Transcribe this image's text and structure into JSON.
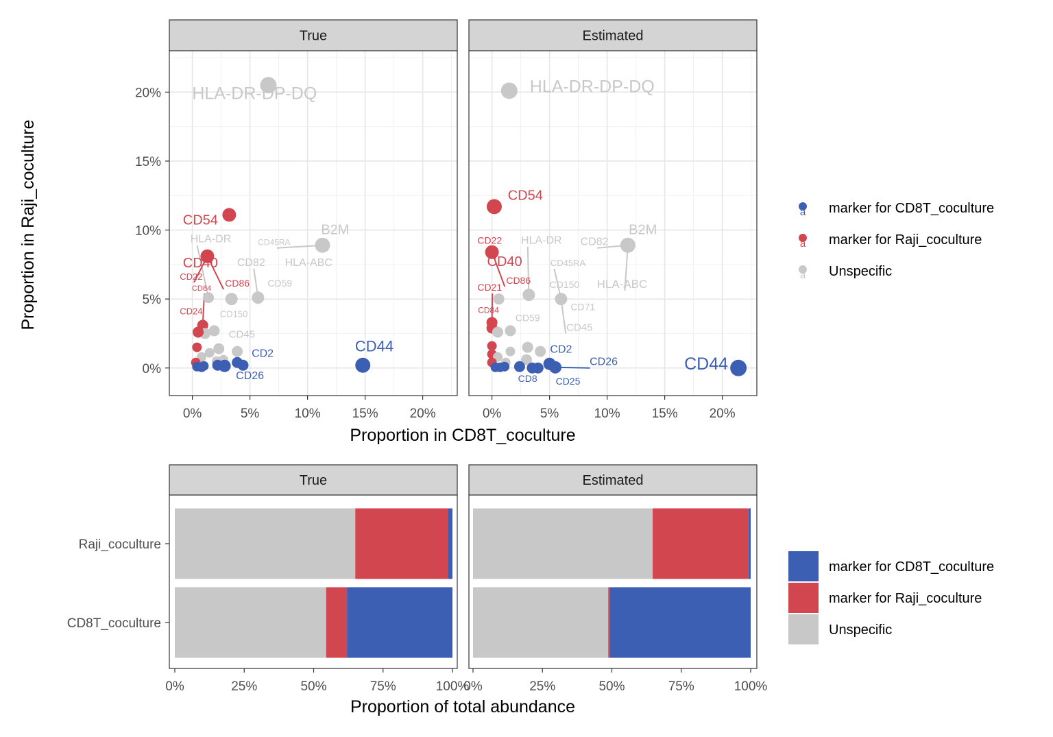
{
  "colors": {
    "cd8t_marker": "#3c5fb4",
    "raji_marker": "#d24650",
    "unspecific": "#c8c8c8"
  },
  "legend": [
    {
      "key": "cd8t_marker",
      "label": "marker for CD8T_coculture"
    },
    {
      "key": "raji_marker",
      "label": "marker for Raji_coculture"
    },
    {
      "key": "unspecific",
      "label": "Unspecific"
    }
  ],
  "chart_data": [
    {
      "type": "scatter",
      "facets": [
        "True",
        "Estimated"
      ],
      "xlabel": "Proportion in CD8T_coculture",
      "ylabel": "Proportion in Raji_coculture",
      "xlim": [
        -2,
        23
      ],
      "ylim": [
        -2,
        23
      ],
      "xticks": [
        0,
        5,
        10,
        15,
        20
      ],
      "yticks": [
        0,
        5,
        10,
        15,
        20
      ],
      "xtick_labels": [
        "0%",
        "5%",
        "10%",
        "15%",
        "20%"
      ],
      "ytick_labels": [
        "0%",
        "5%",
        "10%",
        "15%",
        "20%"
      ],
      "panels": [
        {
          "facet": "True",
          "points": [
            {
              "x": 6.6,
              "y": 20.5,
              "cat": "unspecific",
              "r": 12
            },
            {
              "x": 3.2,
              "y": 11.1,
              "cat": "raji_marker",
              "r": 10
            },
            {
              "x": 11.3,
              "y": 8.9,
              "cat": "unspecific",
              "r": 11
            },
            {
              "x": 1.3,
              "y": 8.1,
              "cat": "raji_marker",
              "r": 10
            },
            {
              "x": 5.7,
              "y": 5.1,
              "cat": "unspecific",
              "r": 9
            },
            {
              "x": 3.4,
              "y": 5.0,
              "cat": "unspecific",
              "r": 9
            },
            {
              "x": 1.4,
              "y": 5.1,
              "cat": "unspecific",
              "r": 8
            },
            {
              "x": 0.9,
              "y": 3.1,
              "cat": "raji_marker",
              "r": 8
            },
            {
              "x": 1.1,
              "y": 2.5,
              "cat": "unspecific",
              "r": 8
            },
            {
              "x": 1.9,
              "y": 2.7,
              "cat": "unspecific",
              "r": 8
            },
            {
              "x": 0.5,
              "y": 2.6,
              "cat": "raji_marker",
              "r": 8
            },
            {
              "x": 0.4,
              "y": 1.5,
              "cat": "raji_marker",
              "r": 7
            },
            {
              "x": 2.3,
              "y": 1.4,
              "cat": "unspecific",
              "r": 8
            },
            {
              "x": 3.9,
              "y": 1.2,
              "cat": "unspecific",
              "r": 8
            },
            {
              "x": 1.5,
              "y": 1.1,
              "cat": "unspecific",
              "r": 7
            },
            {
              "x": 0.8,
              "y": 0.8,
              "cat": "unspecific",
              "r": 7
            },
            {
              "x": 2.7,
              "y": 0.6,
              "cat": "unspecific",
              "r": 7
            },
            {
              "x": 2.1,
              "y": 0.5,
              "cat": "unspecific",
              "r": 7
            },
            {
              "x": 0.3,
              "y": 0.4,
              "cat": "raji_marker",
              "r": 7
            },
            {
              "x": 0.4,
              "y": 0.1,
              "cat": "cd8t_marker",
              "r": 7
            },
            {
              "x": 0.8,
              "y": 0.05,
              "cat": "cd8t_marker",
              "r": 7
            },
            {
              "x": 1.0,
              "y": 0.15,
              "cat": "cd8t_marker",
              "r": 7
            },
            {
              "x": 2.2,
              "y": 0.2,
              "cat": "cd8t_marker",
              "r": 8
            },
            {
              "x": 2.8,
              "y": 0.15,
              "cat": "cd8t_marker",
              "r": 9
            },
            {
              "x": 3.9,
              "y": 0.4,
              "cat": "cd8t_marker",
              "r": 8
            },
            {
              "x": 4.4,
              "y": 0.2,
              "cat": "cd8t_marker",
              "r": 8
            },
            {
              "x": 14.8,
              "y": 0.2,
              "cat": "cd8t_marker",
              "r": 11
            }
          ],
          "labels": [
            {
              "text": "HLA-DR-DP-DQ",
              "x": 5.4,
              "y": 19.5,
              "cat": "unspecific",
              "size": 25
            },
            {
              "text": "CD54",
              "x": 0.7,
              "y": 10.4,
              "cat": "raji_marker",
              "size": 20
            },
            {
              "text": "B2M",
              "x": 12.4,
              "y": 9.7,
              "cat": "unspecific",
              "size": 20
            },
            {
              "text": "HLA-DR",
              "x": 1.6,
              "y": 9.1,
              "cat": "unspecific",
              "size": 16
            },
            {
              "text": "CD45RA",
              "x": 7.1,
              "y": 8.9,
              "cat": "unspecific",
              "size": 12
            },
            {
              "text": "CD40",
              "x": 0.7,
              "y": 7.3,
              "cat": "raji_marker",
              "size": 20
            },
            {
              "text": "CD82",
              "x": 5.1,
              "y": 7.4,
              "cat": "unspecific",
              "size": 16
            },
            {
              "text": "HLA-ABC",
              "x": 10.1,
              "y": 7.4,
              "cat": "unspecific",
              "size": 16
            },
            {
              "text": "CD22",
              "x": -0.1,
              "y": 6.4,
              "cat": "raji_marker",
              "size": 13
            },
            {
              "text": "CD86",
              "x": 3.9,
              "y": 5.9,
              "cat": "raji_marker",
              "size": 14
            },
            {
              "text": "CD59",
              "x": 7.6,
              "y": 5.9,
              "cat": "unspecific",
              "size": 14
            },
            {
              "text": "CD84",
              "x": 0.8,
              "y": 5.6,
              "cat": "raji_marker",
              "size": 11
            },
            {
              "text": "CD24",
              "x": -0.1,
              "y": 3.9,
              "cat": "raji_marker",
              "size": 13
            },
            {
              "text": "CD150",
              "x": 3.6,
              "y": 3.7,
              "cat": "unspecific",
              "size": 13
            },
            {
              "text": "CD45",
              "x": 4.3,
              "y": 2.2,
              "cat": "unspecific",
              "size": 15
            },
            {
              "text": "CD2",
              "x": 6.1,
              "y": 0.8,
              "cat": "cd8t_marker",
              "size": 16
            },
            {
              "text": "CD26",
              "x": 5.0,
              "y": -0.8,
              "cat": "cd8t_marker",
              "size": 16
            },
            {
              "text": "CD44",
              "x": 15.8,
              "y": 1.2,
              "cat": "cd8t_marker",
              "size": 22
            }
          ]
        },
        {
          "facet": "Estimated",
          "points": [
            {
              "x": 1.5,
              "y": 20.1,
              "cat": "unspecific",
              "r": 12
            },
            {
              "x": 0.2,
              "y": 11.7,
              "cat": "raji_marker",
              "r": 11
            },
            {
              "x": 11.8,
              "y": 8.9,
              "cat": "unspecific",
              "r": 11
            },
            {
              "x": 0.0,
              "y": 8.4,
              "cat": "raji_marker",
              "r": 10
            },
            {
              "x": 3.2,
              "y": 5.3,
              "cat": "unspecific",
              "r": 9
            },
            {
              "x": 6.0,
              "y": 5.0,
              "cat": "unspecific",
              "r": 9
            },
            {
              "x": 0.6,
              "y": 5.0,
              "cat": "unspecific",
              "r": 8
            },
            {
              "x": 0.0,
              "y": 3.3,
              "cat": "raji_marker",
              "r": 8
            },
            {
              "x": 0.0,
              "y": 2.9,
              "cat": "raji_marker",
              "r": 8
            },
            {
              "x": 0.5,
              "y": 2.6,
              "cat": "unspecific",
              "r": 8
            },
            {
              "x": 1.6,
              "y": 2.7,
              "cat": "unspecific",
              "r": 8
            },
            {
              "x": 0.0,
              "y": 1.6,
              "cat": "raji_marker",
              "r": 7
            },
            {
              "x": 3.1,
              "y": 1.5,
              "cat": "unspecific",
              "r": 8
            },
            {
              "x": 4.2,
              "y": 1.2,
              "cat": "unspecific",
              "r": 8
            },
            {
              "x": 1.6,
              "y": 1.2,
              "cat": "unspecific",
              "r": 7
            },
            {
              "x": 0.0,
              "y": 1.0,
              "cat": "raji_marker",
              "r": 7
            },
            {
              "x": 3.0,
              "y": 0.6,
              "cat": "unspecific",
              "r": 8
            },
            {
              "x": 0.5,
              "y": 0.8,
              "cat": "unspecific",
              "r": 7
            },
            {
              "x": 1.2,
              "y": 0.4,
              "cat": "unspecific",
              "r": 7
            },
            {
              "x": 0.0,
              "y": 0.4,
              "cat": "raji_marker",
              "r": 7
            },
            {
              "x": 0.3,
              "y": 0.05,
              "cat": "cd8t_marker",
              "r": 7
            },
            {
              "x": 0.7,
              "y": 0.05,
              "cat": "cd8t_marker",
              "r": 7
            },
            {
              "x": 1.1,
              "y": 0.1,
              "cat": "cd8t_marker",
              "r": 7
            },
            {
              "x": 2.4,
              "y": 0.1,
              "cat": "cd8t_marker",
              "r": 8
            },
            {
              "x": 3.5,
              "y": 0.0,
              "cat": "cd8t_marker",
              "r": 8
            },
            {
              "x": 4.0,
              "y": 0.0,
              "cat": "cd8t_marker",
              "r": 8
            },
            {
              "x": 5.0,
              "y": 0.3,
              "cat": "cd8t_marker",
              "r": 9
            },
            {
              "x": 5.5,
              "y": 0.05,
              "cat": "cd8t_marker",
              "r": 9
            },
            {
              "x": 21.4,
              "y": 0.0,
              "cat": "cd8t_marker",
              "r": 12
            }
          ],
          "labels": [
            {
              "text": "HLA-DR-DP-DQ",
              "x": 8.7,
              "y": 20.0,
              "cat": "unspecific",
              "size": 25
            },
            {
              "text": "CD54",
              "x": 2.9,
              "y": 12.2,
              "cat": "raji_marker",
              "size": 20
            },
            {
              "text": "B2M",
              "x": 13.1,
              "y": 9.7,
              "cat": "unspecific",
              "size": 20
            },
            {
              "text": "CD22",
              "x": -0.2,
              "y": 9.0,
              "cat": "raji_marker",
              "size": 14
            },
            {
              "text": "HLA-DR",
              "x": 4.3,
              "y": 9.0,
              "cat": "unspecific",
              "size": 16
            },
            {
              "text": "CD82",
              "x": 8.9,
              "y": 8.9,
              "cat": "unspecific",
              "size": 16
            },
            {
              "text": "CD40",
              "x": 1.1,
              "y": 7.4,
              "cat": "raji_marker",
              "size": 20
            },
            {
              "text": "CD45RA",
              "x": 6.6,
              "y": 7.4,
              "cat": "unspecific",
              "size": 13
            },
            {
              "text": "CD86",
              "x": 2.3,
              "y": 6.1,
              "cat": "raji_marker",
              "size": 14
            },
            {
              "text": "CD21",
              "x": -0.2,
              "y": 5.6,
              "cat": "raji_marker",
              "size": 14
            },
            {
              "text": "CD150",
              "x": 6.3,
              "y": 5.8,
              "cat": "unspecific",
              "size": 14
            },
            {
              "text": "HLA-ABC",
              "x": 11.3,
              "y": 5.8,
              "cat": "unspecific",
              "size": 17
            },
            {
              "text": "CD84",
              "x": -0.3,
              "y": 4.0,
              "cat": "raji_marker",
              "size": 12
            },
            {
              "text": "CD71",
              "x": 7.9,
              "y": 4.2,
              "cat": "unspecific",
              "size": 14
            },
            {
              "text": "CD59",
              "x": 3.1,
              "y": 3.4,
              "cat": "unspecific",
              "size": 14
            },
            {
              "text": "CD45",
              "x": 7.6,
              "y": 2.7,
              "cat": "unspecific",
              "size": 15
            },
            {
              "text": "CD2",
              "x": 6.0,
              "y": 1.1,
              "cat": "cd8t_marker",
              "size": 16
            },
            {
              "text": "CD26",
              "x": 9.7,
              "y": 0.2,
              "cat": "cd8t_marker",
              "size": 16
            },
            {
              "text": "CD8",
              "x": 3.1,
              "y": -1.0,
              "cat": "cd8t_marker",
              "size": 14
            },
            {
              "text": "CD25",
              "x": 6.6,
              "y": -1.2,
              "cat": "cd8t_marker",
              "size": 14
            },
            {
              "text": "CD44",
              "x": 18.6,
              "y": -0.1,
              "cat": "cd8t_marker",
              "size": 25
            }
          ]
        }
      ]
    },
    {
      "type": "bar",
      "orientation": "horizontal",
      "stacked": true,
      "facets": [
        "True",
        "Estimated"
      ],
      "xlabel": "Proportion of total abundance",
      "categories": [
        "Raji_coculture",
        "CD8T_coculture"
      ],
      "xticks": [
        0,
        25,
        50,
        75,
        100
      ],
      "xtick_labels": [
        "0%",
        "25%",
        "50%",
        "75%",
        "100%"
      ],
      "stack_order": [
        "unspecific",
        "raji_marker",
        "cd8t_marker"
      ],
      "panels": [
        {
          "facet": "True",
          "series": [
            {
              "key": "unspecific",
              "name": "Unspecific",
              "values": [
                65.0,
                54.5
              ]
            },
            {
              "key": "raji_marker",
              "name": "marker for Raji_coculture",
              "values": [
                33.3,
                7.5
              ]
            },
            {
              "key": "cd8t_marker",
              "name": "marker for CD8T_coculture",
              "values": [
                1.7,
                38.0
              ]
            }
          ]
        },
        {
          "facet": "Estimated",
          "series": [
            {
              "key": "unspecific",
              "name": "Unspecific",
              "values": [
                64.7,
                48.7
              ]
            },
            {
              "key": "raji_marker",
              "name": "marker for Raji_coculture",
              "values": [
                34.5,
                0.5
              ]
            },
            {
              "key": "cd8t_marker",
              "name": "marker for CD8T_coculture",
              "values": [
                0.8,
                50.8
              ]
            }
          ]
        }
      ]
    }
  ]
}
